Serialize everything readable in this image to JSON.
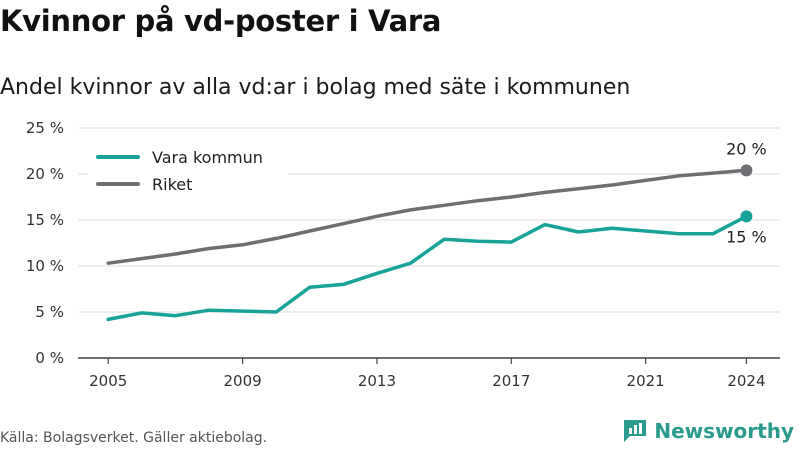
{
  "title": "Kvinnor på vd-poster i Vara",
  "subtitle": "Andel kvinnor av alla vd:ar i bolag med säte i kommunen",
  "source": "Källa: Bolagsverket. Gäller aktiebolag.",
  "brand": "Newsworthy",
  "chart_data": {
    "type": "line",
    "x": [
      2005,
      2006,
      2007,
      2008,
      2009,
      2010,
      2011,
      2012,
      2013,
      2014,
      2015,
      2016,
      2017,
      2018,
      2019,
      2020,
      2021,
      2022,
      2023,
      2024
    ],
    "series": [
      {
        "name": "Vara kommun",
        "color": "#17a398",
        "values": [
          4.2,
          4.9,
          4.6,
          5.2,
          5.1,
          5.0,
          7.7,
          8.0,
          9.2,
          10.3,
          12.9,
          12.7,
          12.6,
          14.5,
          13.7,
          14.1,
          13.8,
          13.5,
          13.5,
          15.4
        ],
        "end_label": "15 %"
      },
      {
        "name": "Riket",
        "color": "#6f6e73",
        "values": [
          10.3,
          10.8,
          11.3,
          11.9,
          12.3,
          13.0,
          13.8,
          14.6,
          15.4,
          16.1,
          16.6,
          17.1,
          17.5,
          18.0,
          18.4,
          18.8,
          19.3,
          19.8,
          20.1,
          20.4
        ],
        "end_label": "20 %"
      }
    ],
    "ylim": [
      0,
      25
    ],
    "yticks": [
      0,
      5,
      10,
      15,
      20,
      25
    ],
    "ytick_labels": [
      "0 %",
      "5 %",
      "10 %",
      "15 %",
      "20 %",
      "25 %"
    ],
    "xticks": [
      2005,
      2009,
      2013,
      2017,
      2021,
      2024
    ],
    "xtick_labels": [
      "2005",
      "2009",
      "2013",
      "2017",
      "2021",
      "2024"
    ],
    "xlim": [
      2004.1,
      2025.0
    ],
    "grid": true,
    "legend_position": "top-left"
  }
}
